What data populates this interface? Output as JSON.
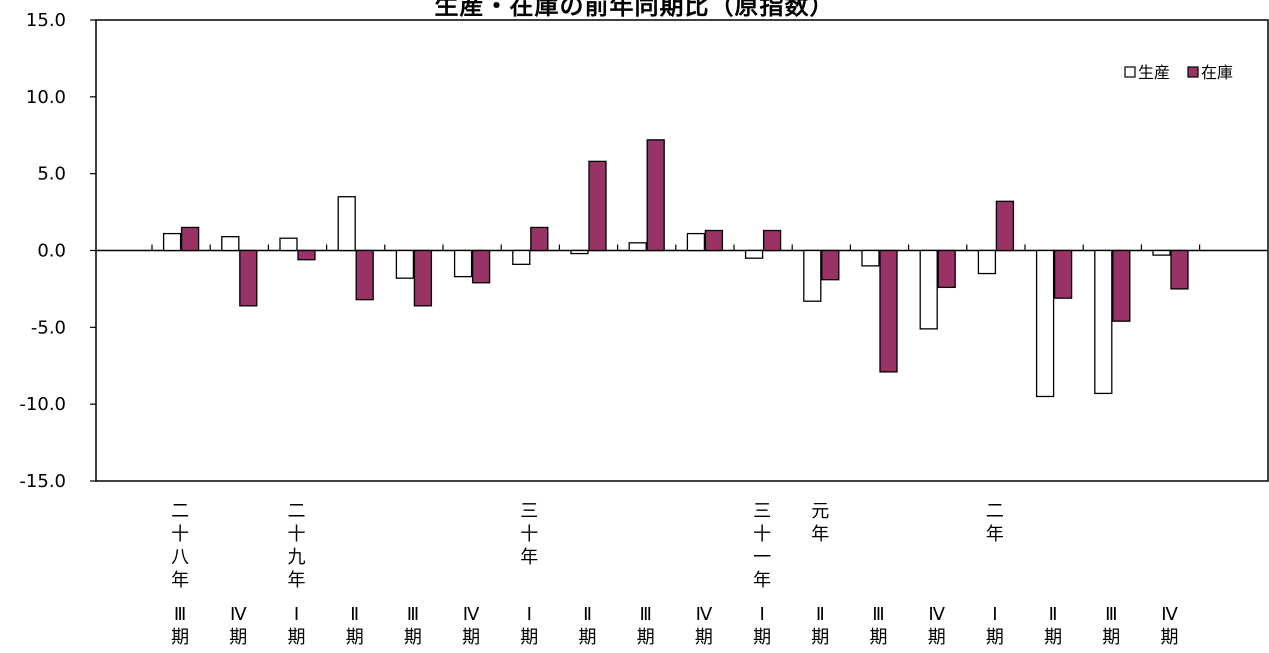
{
  "chart_data": {
    "type": "bar",
    "title": "生産・在庫の前年同期比（原指数）",
    "ylim": [
      -15,
      15
    ],
    "y_ticks": [
      "15.0",
      "10.0",
      "5.0",
      "0.0",
      "-5.0",
      "-10.0",
      "-15.0"
    ],
    "y_tick_values": [
      15,
      10,
      5,
      0,
      -5,
      -10,
      -15
    ],
    "grid": false,
    "legend_position": "top-right",
    "categories": [
      {
        "year": "二十八年",
        "quarter": "Ⅲ期"
      },
      {
        "year": "",
        "quarter": "Ⅳ期"
      },
      {
        "year": "二十九年",
        "quarter": "Ⅰ期"
      },
      {
        "year": "",
        "quarter": "Ⅱ期"
      },
      {
        "year": "",
        "quarter": "Ⅲ期"
      },
      {
        "year": "",
        "quarter": "Ⅳ期"
      },
      {
        "year": "三十年",
        "quarter": "Ⅰ期"
      },
      {
        "year": "",
        "quarter": "Ⅱ期"
      },
      {
        "year": "",
        "quarter": "Ⅲ期"
      },
      {
        "year": "",
        "quarter": "Ⅳ期"
      },
      {
        "year": "三十一年",
        "quarter": "Ⅰ期"
      },
      {
        "year": "元年",
        "quarter": "Ⅱ期"
      },
      {
        "year": "",
        "quarter": "Ⅲ期"
      },
      {
        "year": "",
        "quarter": "Ⅳ期"
      },
      {
        "year": "二年",
        "quarter": "Ⅰ期"
      },
      {
        "year": "",
        "quarter": "Ⅱ期"
      },
      {
        "year": "",
        "quarter": "Ⅲ期"
      },
      {
        "year": "",
        "quarter": "Ⅳ期"
      }
    ],
    "series": [
      {
        "name": "生産",
        "color": "#ffffff",
        "values": [
          1.1,
          0.9,
          0.8,
          3.5,
          -1.8,
          -1.7,
          -0.9,
          -0.2,
          0.5,
          1.1,
          -0.5,
          -3.3,
          -1.0,
          -5.1,
          -1.5,
          -9.5,
          -9.3,
          -0.3
        ]
      },
      {
        "name": "在庫",
        "color": "#993366",
        "values": [
          1.5,
          -3.6,
          -0.6,
          -3.2,
          -3.6,
          -2.1,
          1.5,
          5.8,
          7.2,
          1.3,
          1.3,
          -1.9,
          -7.9,
          -2.4,
          3.2,
          -3.1,
          -4.6,
          -2.5
        ]
      }
    ]
  }
}
